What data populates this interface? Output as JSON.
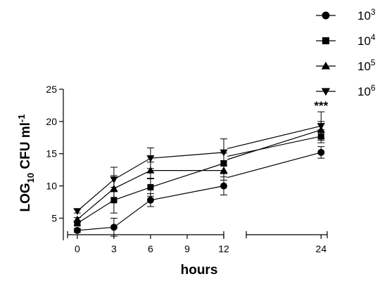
{
  "chart_data": {
    "type": "line",
    "xlabel": "hours",
    "ylabel": {
      "base": "LOG",
      "sub": "10",
      "mid": " CFU ml",
      "sup": "-1"
    },
    "ylim": [
      2,
      25
    ],
    "yticks": [
      5,
      10,
      15,
      20,
      25
    ],
    "x_segments": [
      {
        "range": [
          -0.8,
          12
        ],
        "ticks": [
          0,
          3,
          6,
          9,
          12
        ]
      },
      {
        "range": [
          14.2,
          24.8
        ],
        "ticks": [
          24
        ]
      }
    ],
    "broken_axis": true,
    "annotation": {
      "text": "***",
      "x": 24
    },
    "series": [
      {
        "name": "10",
        "exp": "3",
        "marker": "circle",
        "x": [
          0,
          3,
          6,
          12,
          24
        ],
        "y": [
          3.1,
          3.6,
          7.8,
          10.0,
          15.2
        ],
        "err": [
          0.3,
          1.4,
          1.0,
          1.4,
          0.9
        ],
        "bridge": [
          12.3,
          11.3
        ]
      },
      {
        "name": "10",
        "exp": "4",
        "marker": "square",
        "x": [
          0,
          3,
          6,
          12,
          24
        ],
        "y": [
          4.2,
          7.8,
          9.8,
          13.5,
          17.7
        ],
        "err": [
          0.3,
          2.0,
          1.4,
          1.6,
          1.0
        ],
        "bridge": [
          12.3,
          14.6
        ]
      },
      {
        "name": "10",
        "exp": "5",
        "marker": "triangle",
        "x": [
          0,
          3,
          6,
          12,
          24
        ],
        "y": [
          4.8,
          9.6,
          12.4,
          12.4,
          18.7
        ],
        "err": [
          0.3,
          2.0,
          1.3,
          1.5,
          1.3
        ],
        "bridge": [
          12.3,
          14.1
        ]
      },
      {
        "name": "10",
        "exp": "6",
        "marker": "triangle-down",
        "x": [
          0,
          3,
          6,
          12,
          24
        ],
        "y": [
          6.1,
          11.0,
          14.3,
          15.2,
          19.3
        ],
        "err": [
          0.3,
          1.9,
          1.6,
          2.1,
          2.2
        ],
        "bridge": [
          12.3,
          15.8
        ]
      }
    ]
  }
}
